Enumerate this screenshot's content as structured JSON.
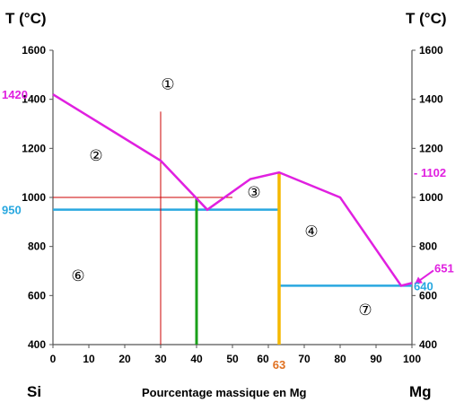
{
  "chart_data": {
    "type": "phase-diagram",
    "x_axis": {
      "label": "Pourcentage massique en Mg",
      "min": 0,
      "max": 100,
      "ticks": [
        0,
        10,
        20,
        30,
        40,
        50,
        60,
        70,
        80,
        90,
        100
      ],
      "end_labels": {
        "left": "Si",
        "right": "Mg"
      }
    },
    "y_axis": {
      "left_title": "T (°C)",
      "right_title": "T (°C)",
      "min": 400,
      "max": 1600,
      "ticks": [
        400,
        600,
        800,
        1000,
        1200,
        1400,
        1600
      ]
    },
    "liquidus": {
      "color": "#e020e0",
      "points": [
        [
          0,
          1420
        ],
        [
          30,
          1150
        ],
        [
          43,
          950
        ],
        [
          55,
          1075
        ],
        [
          63,
          1102
        ],
        [
          80,
          1000
        ],
        [
          97,
          640
        ],
        [
          100,
          651
        ]
      ]
    },
    "lines": [
      {
        "name": "eutectic-left",
        "color": "#29a8e0",
        "x1": 0,
        "y1": 950,
        "x2": 63,
        "y2": 950
      },
      {
        "name": "eutectic-right",
        "color": "#29a8e0",
        "x1": 63,
        "y1": 640,
        "x2": 100,
        "y2": 640
      },
      {
        "name": "compound-line",
        "color": "#f5b800",
        "x1": 63,
        "y1": 400,
        "x2": 63,
        "y2": 1102
      },
      {
        "name": "composition-line",
        "color": "#1aa01a",
        "x1": 40,
        "y1": 400,
        "x2": 40,
        "y2": 1000
      },
      {
        "name": "guide-vertical",
        "color": "#cc0000",
        "x1": 30,
        "y1": 400,
        "x2": 30,
        "y2": 1350
      },
      {
        "name": "guide-horizontal",
        "color": "#cc0000",
        "x1": 0,
        "y1": 1000,
        "x2": 50,
        "y2": 1000
      }
    ],
    "annotations": [
      {
        "text": "1420",
        "color": "#e020e0",
        "side": "left",
        "y": 1420
      },
      {
        "text": "950",
        "color": "#29a8e0",
        "side": "left",
        "y": 950
      },
      {
        "text": "- 1102",
        "color": "#e020e0",
        "side": "right",
        "y": 1102
      },
      {
        "text": "651",
        "color": "#e020e0",
        "side": "right-arrow",
        "y": 651
      },
      {
        "text": "640",
        "color": "#29a8e0",
        "side": "right",
        "y": 640
      },
      {
        "text": "63",
        "color": "#e07020",
        "side": "bottom",
        "x": 63
      }
    ],
    "regions": [
      {
        "label": "①",
        "x": 32,
        "y": 1440
      },
      {
        "label": "②",
        "x": 12,
        "y": 1150
      },
      {
        "label": "③",
        "x": 56,
        "y": 1000
      },
      {
        "label": "④",
        "x": 72,
        "y": 840
      },
      {
        "label": "⑥",
        "x": 7,
        "y": 660
      },
      {
        "label": "⑦",
        "x": 87,
        "y": 520
      }
    ]
  }
}
